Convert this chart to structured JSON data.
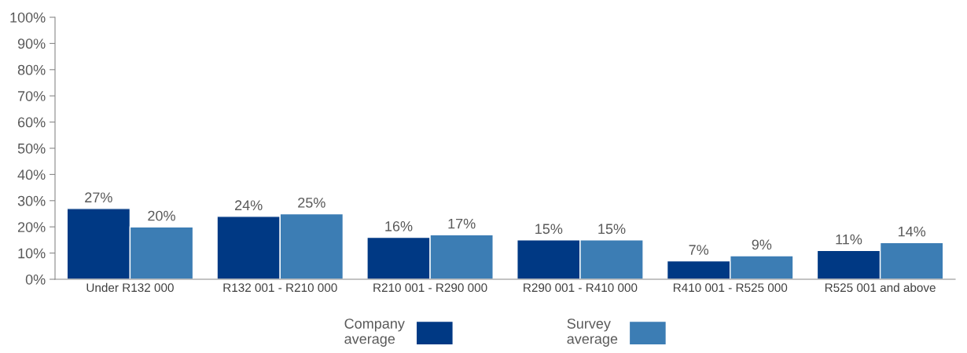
{
  "chart_data": {
    "type": "bar",
    "categories": [
      "Under R132 000",
      "R132 001 - R210 000",
      "R210 001 - R290 000",
      "R290 001 - R410 000",
      "R410 001 - R525 000",
      "R525 001 and above"
    ],
    "series": [
      {
        "name": "Company\naverage",
        "color": "#003984",
        "values": [
          27,
          24,
          16,
          15,
          7,
          11
        ],
        "value_labels": [
          "27%",
          "24%",
          "16%",
          "15%",
          "7%",
          "11%"
        ]
      },
      {
        "name": "Survey\naverage",
        "color": "#3c7db4",
        "values": [
          20,
          25,
          17,
          15,
          9,
          14
        ],
        "value_labels": [
          "20%",
          "25%",
          "17%",
          "15%",
          "9%",
          "14%"
        ]
      }
    ],
    "ylim": [
      0,
      100
    ],
    "yticks": [
      {
        "value": 0,
        "label": "0%"
      },
      {
        "value": 10,
        "label": "10%"
      },
      {
        "value": 20,
        "label": "20%"
      },
      {
        "value": 30,
        "label": "30%"
      },
      {
        "value": 40,
        "label": "40%"
      },
      {
        "value": 50,
        "label": "50%"
      },
      {
        "value": 60,
        "label": "60%"
      },
      {
        "value": 70,
        "label": "70%"
      },
      {
        "value": 80,
        "label": "80%"
      },
      {
        "value": 90,
        "label": "90%"
      },
      {
        "value": 100,
        "label": "100%"
      }
    ],
    "grid": false,
    "legend": "bottom"
  }
}
